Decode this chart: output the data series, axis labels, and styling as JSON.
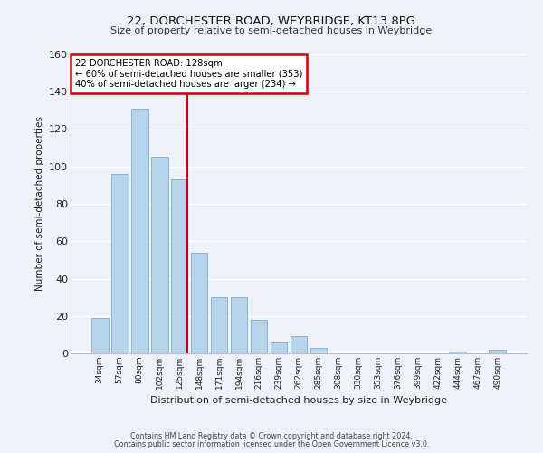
{
  "title1": "22, DORCHESTER ROAD, WEYBRIDGE, KT13 8PG",
  "title2": "Size of property relative to semi-detached houses in Weybridge",
  "xlabel": "Distribution of semi-detached houses by size in Weybridge",
  "ylabel": "Number of semi-detached properties",
  "bar_labels": [
    "34sqm",
    "57sqm",
    "80sqm",
    "102sqm",
    "125sqm",
    "148sqm",
    "171sqm",
    "194sqm",
    "216sqm",
    "239sqm",
    "262sqm",
    "285sqm",
    "308sqm",
    "330sqm",
    "353sqm",
    "376sqm",
    "399sqm",
    "422sqm",
    "444sqm",
    "467sqm",
    "490sqm"
  ],
  "bar_values": [
    19,
    96,
    131,
    105,
    93,
    54,
    30,
    30,
    18,
    6,
    9,
    3,
    0,
    0,
    0,
    0,
    0,
    0,
    1,
    0,
    2
  ],
  "bar_color": "#b8d4ea",
  "bar_edge_color": "#7aaece",
  "highlight_bar_index": 4,
  "highlight_color": "#cc0000",
  "annotation_title": "22 DORCHESTER ROAD: 128sqm",
  "annotation_line1": "← 60% of semi-detached houses are smaller (353)",
  "annotation_line2": "40% of semi-detached houses are larger (234) →",
  "annotation_box_color": "#ffffff",
  "annotation_box_edge": "#cc0000",
  "ylim": [
    0,
    160
  ],
  "yticks": [
    0,
    20,
    40,
    60,
    80,
    100,
    120,
    140,
    160
  ],
  "footer1": "Contains HM Land Registry data © Crown copyright and database right 2024.",
  "footer2": "Contains public sector information licensed under the Open Government Licence v3.0.",
  "background_color": "#eef2f8",
  "grid_color": "#ffffff"
}
